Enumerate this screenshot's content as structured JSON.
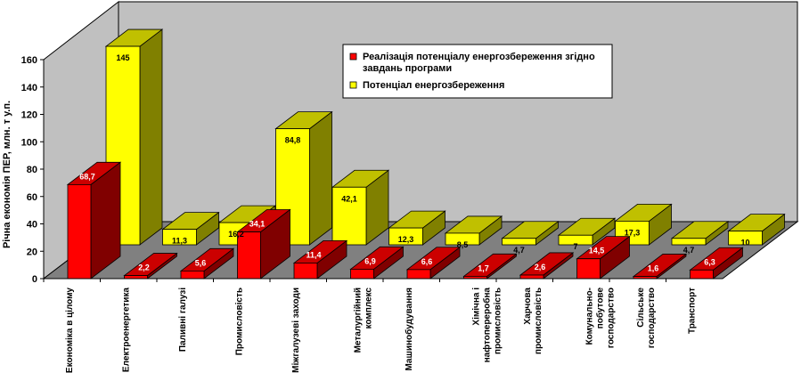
{
  "chart_data": {
    "type": "bar",
    "style": "3d-clustered-bar",
    "title": "",
    "xlabel": "",
    "ylabel": "Річна економія ПЕР, млн. т у.п.",
    "ylim": [
      0,
      160
    ],
    "yticks": [
      "0",
      "20",
      "40",
      "60",
      "80",
      "100",
      "120",
      "140",
      "160"
    ],
    "grid": false,
    "legend_position": "top-right",
    "categories": [
      [
        "Економіка в цілому"
      ],
      [
        "Електроенергетика"
      ],
      [
        "Паливні галузі"
      ],
      [
        "Промисловість"
      ],
      [
        "Міжгалузеві заходи"
      ],
      [
        "Металургійний",
        "комплекс"
      ],
      [
        "Машинобудування"
      ],
      [
        "Хімічна і",
        "нафтопереробна",
        "промисловість"
      ],
      [
        "Харчова",
        "промисловість"
      ],
      [
        "Комунально-",
        "побутове",
        "господарство"
      ],
      [
        "Сільське",
        "господарство"
      ],
      [
        "Транспорт"
      ]
    ],
    "series": [
      {
        "name": "Реалізація потенціалу енергозбереження згідно завдань програми",
        "legend_lines": [
          "Реалізація потенціалу енергозбереження згідно",
          "завдань програми"
        ],
        "color": "#ff0000",
        "values": [
          68.7,
          2.2,
          5.6,
          34.1,
          11.4,
          6.9,
          6.6,
          1.7,
          2.6,
          14.5,
          1.6,
          6.3
        ],
        "labels": [
          "68,7",
          "2,2",
          "5,6",
          "34,1",
          "11,4",
          "6,9",
          "6,6",
          "1,7",
          "2,6",
          "14,5",
          "1,6",
          "6,3"
        ]
      },
      {
        "name": "Потенціал енергозбереження",
        "legend_lines": [
          "Потенціал енергозбереження"
        ],
        "color": "#ffff00",
        "values": [
          145,
          11.3,
          16.2,
          84.8,
          42.1,
          12.3,
          8.5,
          4.7,
          7,
          17.3,
          4.7,
          10
        ],
        "labels": [
          "145",
          "11,3",
          "16,2",
          "84,8",
          "42,1",
          "12,3",
          "8,5",
          "4,7",
          "7",
          "17,3",
          "4,7",
          "10"
        ]
      }
    ]
  },
  "colors": {
    "wall": "#c0c0c0",
    "floor": "#808080",
    "red_front": "#ff0000",
    "red_side": "#800000",
    "red_top": "#cc0000",
    "yellow_front": "#ffff00",
    "yellow_side": "#808000",
    "yellow_top": "#c0c000"
  }
}
